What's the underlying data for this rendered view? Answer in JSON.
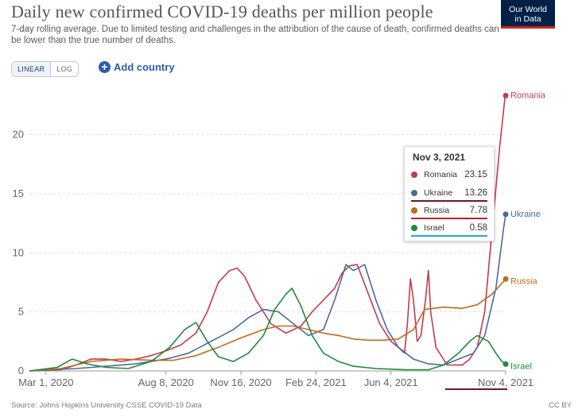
{
  "header": {
    "title": "Daily new confirmed COVID-19 deaths per million people",
    "subtitle": "7-day rolling average. Due to limited testing and challenges in the attribution of the cause of death, confirmed deaths can be lower than the true number of deaths.",
    "logo_line1": "Our World",
    "logo_line2": "in Data"
  },
  "controls": {
    "linear_label": "LINEAR",
    "log_label": "LOG",
    "add_country_label": "Add country",
    "selected_scale": "LINEAR"
  },
  "tooltip": {
    "date": "Nov 3, 2021",
    "rows": [
      {
        "name": "Romania",
        "value": "23.15",
        "color": "#c43b4a"
      },
      {
        "name": "Ukraine",
        "value": "13.26",
        "color": "#4c6a9c"
      },
      {
        "name": "Russia",
        "value": "7.78",
        "color": "#c26a20"
      },
      {
        "name": "Israel",
        "value": "0.58",
        "color": "#1f8a3c"
      }
    ]
  },
  "footer": {
    "source": "Source: Johns Hopkins University CSSE COVID-19 Data",
    "license": "CC BY"
  },
  "chart_data": {
    "type": "line",
    "title": "Daily new confirmed COVID-19 deaths per million people",
    "ylim": [
      0,
      24
    ],
    "y_ticks": [
      0,
      5,
      10,
      15,
      20
    ],
    "x_ticks": [
      "Mar 1, 2020",
      "Aug 8, 2020",
      "Nov 16, 2020",
      "Feb 24, 2021",
      "Jun 4, 2021",
      "Nov 4, 2021"
    ],
    "x_tick_days": [
      0,
      160,
      260,
      360,
      460,
      613
    ],
    "x_range_days": [
      -22,
      613
    ],
    "grid": "horizontal dashed",
    "series": [
      {
        "name": "Romania",
        "color": "#c43b4a",
        "points": [
          [
            -22,
            0
          ],
          [
            20,
            0.1
          ],
          [
            40,
            0.5
          ],
          [
            60,
            1.0
          ],
          [
            80,
            1.0
          ],
          [
            100,
            0.8
          ],
          [
            120,
            1.0
          ],
          [
            140,
            1.3
          ],
          [
            160,
            1.7
          ],
          [
            180,
            2.2
          ],
          [
            200,
            3.2
          ],
          [
            215,
            5.0
          ],
          [
            230,
            7.5
          ],
          [
            245,
            8.5
          ],
          [
            255,
            8.7
          ],
          [
            265,
            8.0
          ],
          [
            280,
            6.0
          ],
          [
            300,
            4.0
          ],
          [
            320,
            3.2
          ],
          [
            340,
            3.8
          ],
          [
            355,
            5.0
          ],
          [
            370,
            6.0
          ],
          [
            385,
            7.0
          ],
          [
            395,
            8.3
          ],
          [
            405,
            8.9
          ],
          [
            415,
            9.0
          ],
          [
            430,
            6.5
          ],
          [
            445,
            4.0
          ],
          [
            460,
            2.5
          ],
          [
            470,
            2.0
          ],
          [
            478,
            1.5
          ],
          [
            482,
            4.0
          ],
          [
            486,
            7.8
          ],
          [
            490,
            6.0
          ],
          [
            495,
            2.5
          ],
          [
            500,
            3.0
          ],
          [
            506,
            6.0
          ],
          [
            510,
            8.5
          ],
          [
            513,
            5.0
          ],
          [
            520,
            2.0
          ],
          [
            535,
            0.5
          ],
          [
            555,
            0.5
          ],
          [
            565,
            1.0
          ],
          [
            575,
            2.0
          ],
          [
            585,
            5.0
          ],
          [
            595,
            12.0
          ],
          [
            605,
            19.0
          ],
          [
            612,
            23.15
          ],
          [
            613,
            23.3
          ]
        ]
      },
      {
        "name": "Ukraine",
        "color": "#4c6a9c",
        "points": [
          [
            -22,
            0
          ],
          [
            40,
            0.2
          ],
          [
            80,
            0.4
          ],
          [
            120,
            0.6
          ],
          [
            160,
            1.0
          ],
          [
            190,
            1.5
          ],
          [
            220,
            2.5
          ],
          [
            250,
            3.5
          ],
          [
            270,
            4.5
          ],
          [
            290,
            5.2
          ],
          [
            310,
            5.0
          ],
          [
            330,
            4.0
          ],
          [
            350,
            3.0
          ],
          [
            370,
            3.5
          ],
          [
            385,
            6.0
          ],
          [
            400,
            9.0
          ],
          [
            410,
            8.5
          ],
          [
            425,
            9.0
          ],
          [
            440,
            6.0
          ],
          [
            455,
            3.5
          ],
          [
            470,
            2.0
          ],
          [
            490,
            1.0
          ],
          [
            510,
            0.6
          ],
          [
            530,
            0.5
          ],
          [
            550,
            1.0
          ],
          [
            570,
            1.5
          ],
          [
            585,
            3.0
          ],
          [
            600,
            7.0
          ],
          [
            610,
            12.0
          ],
          [
            613,
            13.26
          ]
        ]
      },
      {
        "name": "Russia",
        "color": "#c26a20",
        "points": [
          [
            -22,
            0
          ],
          [
            20,
            0.2
          ],
          [
            60,
            0.8
          ],
          [
            100,
            1.0
          ],
          [
            140,
            0.9
          ],
          [
            170,
            0.9
          ],
          [
            200,
            1.3
          ],
          [
            230,
            2.0
          ],
          [
            260,
            2.8
          ],
          [
            290,
            3.5
          ],
          [
            310,
            3.8
          ],
          [
            330,
            3.8
          ],
          [
            350,
            3.5
          ],
          [
            370,
            3.2
          ],
          [
            390,
            3.0
          ],
          [
            410,
            2.7
          ],
          [
            430,
            2.6
          ],
          [
            450,
            2.6
          ],
          [
            470,
            2.7
          ],
          [
            490,
            3.5
          ],
          [
            505,
            5.2
          ],
          [
            530,
            5.4
          ],
          [
            555,
            5.3
          ],
          [
            575,
            5.6
          ],
          [
            595,
            6.5
          ],
          [
            613,
            7.78
          ]
        ]
      },
      {
        "name": "Israel",
        "color": "#1f8a3c",
        "points": [
          [
            -22,
            0
          ],
          [
            15,
            0.3
          ],
          [
            35,
            1.0
          ],
          [
            55,
            0.6
          ],
          [
            80,
            0.3
          ],
          [
            110,
            0.2
          ],
          [
            140,
            0.8
          ],
          [
            165,
            2.0
          ],
          [
            185,
            3.5
          ],
          [
            200,
            4.1
          ],
          [
            215,
            2.5
          ],
          [
            230,
            1.2
          ],
          [
            250,
            0.8
          ],
          [
            270,
            1.5
          ],
          [
            290,
            3.0
          ],
          [
            305,
            5.2
          ],
          [
            320,
            6.5
          ],
          [
            328,
            7.0
          ],
          [
            340,
            5.5
          ],
          [
            355,
            3.0
          ],
          [
            370,
            1.5
          ],
          [
            390,
            0.8
          ],
          [
            410,
            0.4
          ],
          [
            440,
            0.2
          ],
          [
            480,
            0.1
          ],
          [
            510,
            0.1
          ],
          [
            530,
            0.5
          ],
          [
            550,
            1.5
          ],
          [
            565,
            2.5
          ],
          [
            575,
            3.0
          ],
          [
            590,
            2.5
          ],
          [
            600,
            1.5
          ],
          [
            608,
            0.8
          ],
          [
            613,
            0.58
          ]
        ]
      }
    ],
    "end_labels": [
      "Romania",
      "Ukraine",
      "Russia",
      "Israel"
    ]
  }
}
